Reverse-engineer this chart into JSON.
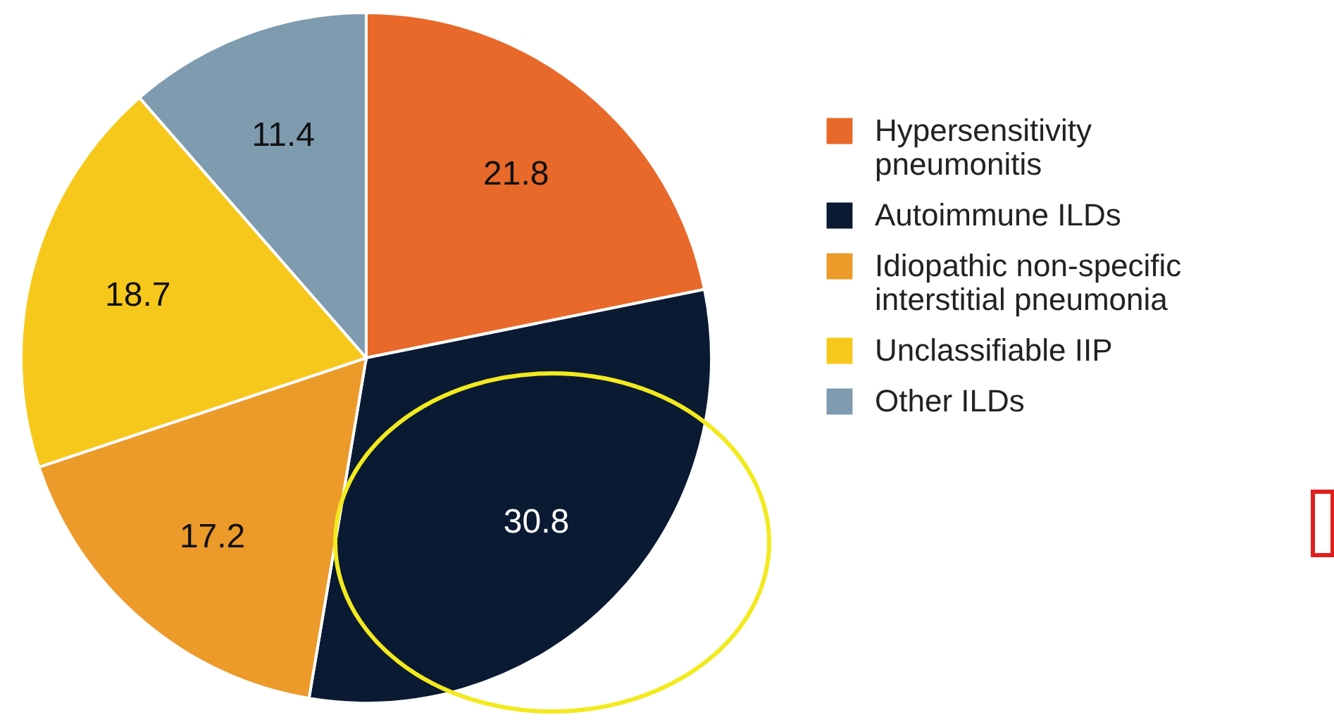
{
  "chart_data": {
    "type": "pie",
    "categories": [
      "Hypersensitivity pneumonitis",
      "Autoimmune ILDs",
      "Idiopathic non-specific interstitial pneumonia",
      "Unclassifiable IIP",
      "Other ILDs"
    ],
    "values": [
      21.8,
      30.8,
      17.2,
      18.7,
      11.4
    ],
    "colors": [
      "#e8692a",
      "#0b1a33",
      "#ec9a2a",
      "#f7c81c",
      "#7f9bb0"
    ],
    "data_labels": true,
    "legend": "right"
  }
}
